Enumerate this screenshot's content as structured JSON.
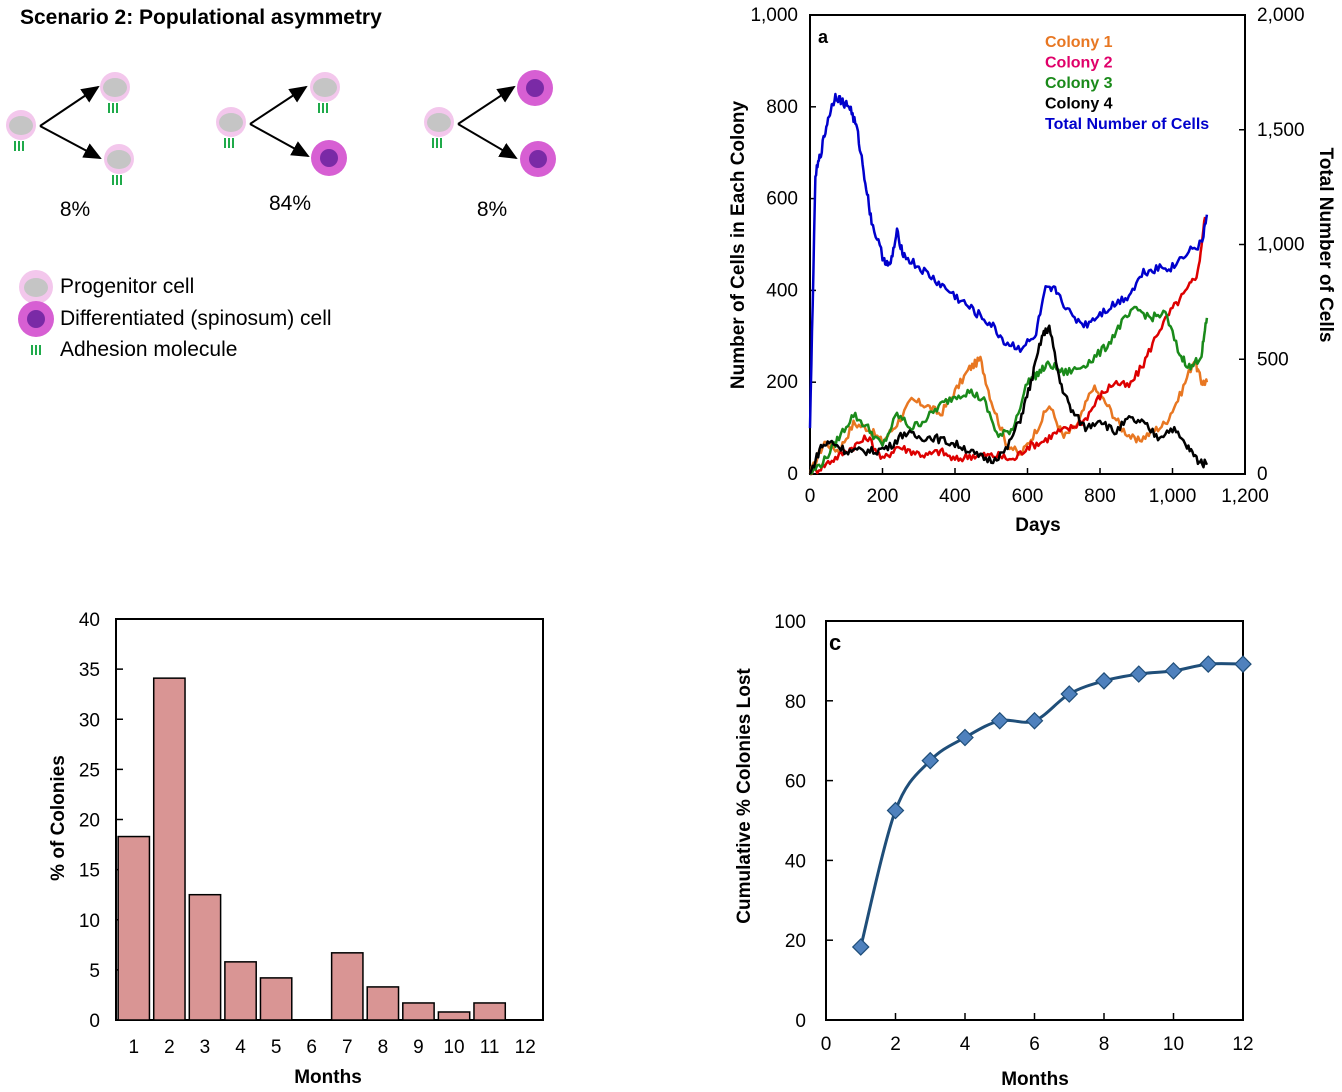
{
  "scenario": {
    "title": "Scenario 2: Populational asymmetry",
    "percentages": [
      "8%",
      "84%",
      "8%"
    ],
    "legend": [
      {
        "icon": "progenitor-cell-icon",
        "label": "Progenitor cell"
      },
      {
        "icon": "differentiated-cell-icon",
        "label": "Differentiated (spinosum) cell"
      },
      {
        "icon": "adhesion-molecule-icon",
        "label": "Adhesion molecule"
      }
    ]
  },
  "colors": {
    "colony1": "#e87722",
    "colony2": "#e0006a",
    "colony3": "#1a8a1a",
    "colony4": "#000000",
    "total": "#0000cc",
    "red_line": "#dd0000",
    "bar_fill": "#d99594",
    "line_c": "#1f4e79",
    "marker_c": "#4f81bd"
  },
  "chart_data": [
    {
      "type": "line",
      "label": "a",
      "xlabel": "Days",
      "ylabel": "Number of Cells in Each Colony",
      "y2label": "Total Number of Cells",
      "xlim": [
        0,
        1200
      ],
      "ylim": [
        0,
        1000
      ],
      "y2lim": [
        0,
        2000
      ],
      "xticks": [
        "0",
        "200",
        "400",
        "600",
        "800",
        "1,000",
        "1,200"
      ],
      "yticks": [
        "0",
        "200",
        "400",
        "600",
        "800",
        "1,000"
      ],
      "y2ticks": [
        "0",
        "500",
        "1,000",
        "1,500",
        "2,000"
      ],
      "legend": [
        "Colony 1",
        "Colony 2",
        "Colony 3",
        "Colony 4",
        "Total Number of Cells"
      ],
      "series": [
        {
          "name": "Colony 1",
          "color": "colony1",
          "axis": "left",
          "x": [
            0,
            40,
            80,
            120,
            160,
            200,
            240,
            280,
            320,
            360,
            400,
            440,
            470,
            500,
            540,
            580,
            620,
            660,
            700,
            740,
            780,
            820,
            860,
            900,
            940,
            980,
            1020,
            1060,
            1080,
            1095
          ],
          "y": [
            0,
            70,
            50,
            110,
            100,
            70,
            110,
            160,
            150,
            130,
            180,
            230,
            250,
            160,
            70,
            40,
            90,
            150,
            80,
            110,
            190,
            150,
            100,
            70,
            90,
            110,
            170,
            250,
            200,
            200
          ]
        },
        {
          "name": "Colony 2",
          "color": "red_line",
          "axis": "left",
          "x": [
            0,
            40,
            80,
            120,
            160,
            200,
            240,
            280,
            320,
            360,
            400,
            440,
            480,
            520,
            560,
            600,
            640,
            680,
            720,
            760,
            800,
            840,
            880,
            920,
            960,
            1000,
            1040,
            1070,
            1090
          ],
          "y": [
            0,
            20,
            40,
            60,
            80,
            30,
            60,
            50,
            40,
            50,
            30,
            40,
            40,
            40,
            30,
            60,
            70,
            90,
            100,
            120,
            170,
            200,
            190,
            240,
            310,
            360,
            400,
            440,
            560
          ]
        },
        {
          "name": "Colony 3",
          "color": "colony3",
          "axis": "left",
          "x": [
            0,
            40,
            80,
            120,
            160,
            200,
            240,
            280,
            320,
            360,
            400,
            440,
            480,
            520,
            560,
            600,
            630,
            660,
            700,
            740,
            780,
            820,
            860,
            900,
            940,
            980,
            1020,
            1050,
            1080,
            1095
          ],
          "y": [
            0,
            30,
            80,
            130,
            100,
            60,
            130,
            100,
            120,
            150,
            170,
            180,
            160,
            80,
            100,
            200,
            220,
            240,
            220,
            230,
            250,
            280,
            330,
            360,
            340,
            350,
            260,
            230,
            260,
            340
          ]
        },
        {
          "name": "Colony 4",
          "color": "colony4",
          "axis": "left",
          "x": [
            0,
            30,
            60,
            100,
            140,
            180,
            220,
            260,
            300,
            340,
            380,
            420,
            460,
            500,
            540,
            580,
            610,
            640,
            660,
            690,
            720,
            760,
            800,
            840,
            880,
            920,
            960,
            1000,
            1040,
            1070,
            1095
          ],
          "y": [
            0,
            60,
            70,
            50,
            50,
            50,
            60,
            90,
            80,
            80,
            70,
            60,
            40,
            30,
            50,
            120,
            200,
            300,
            320,
            200,
            140,
            100,
            120,
            90,
            120,
            110,
            80,
            100,
            60,
            30,
            20
          ]
        },
        {
          "name": "Total Number of Cells",
          "color": "total",
          "axis": "right",
          "x": [
            0,
            15,
            30,
            50,
            70,
            90,
            110,
            130,
            150,
            170,
            200,
            220,
            240,
            260,
            300,
            340,
            380,
            420,
            460,
            500,
            540,
            580,
            620,
            650,
            680,
            720,
            760,
            800,
            840,
            880,
            920,
            960,
            1000,
            1040,
            1080,
            1095
          ],
          "y": [
            200,
            1300,
            1400,
            1550,
            1650,
            1620,
            1600,
            1500,
            1300,
            1100,
            950,
            900,
            1050,
            950,
            900,
            850,
            800,
            750,
            700,
            650,
            570,
            550,
            590,
            800,
            800,
            690,
            650,
            700,
            740,
            780,
            880,
            900,
            900,
            970,
            1000,
            1130
          ]
        }
      ]
    },
    {
      "type": "bar",
      "label": "",
      "xlabel": "Months",
      "ylabel": "% of Colonies",
      "categories": [
        "1",
        "2",
        "3",
        "4",
        "5",
        "6",
        "7",
        "8",
        "9",
        "10",
        "11",
        "12"
      ],
      "values": [
        18.3,
        34.1,
        12.5,
        5.8,
        4.2,
        0,
        6.7,
        3.3,
        1.7,
        0.8,
        1.7,
        0
      ],
      "ylim": [
        0,
        40
      ],
      "yticks": [
        "0",
        "5",
        "10",
        "15",
        "20",
        "25",
        "30",
        "35",
        "40"
      ]
    },
    {
      "type": "line",
      "label": "c",
      "xlabel": "Months",
      "ylabel": "Cumulative % Colonies Lost",
      "x": [
        1,
        2,
        3,
        4,
        5,
        6,
        7,
        8,
        9,
        10,
        11,
        12
      ],
      "y": [
        18.3,
        52.5,
        65,
        70.8,
        75,
        75,
        81.7,
        85,
        86.7,
        87.5,
        89.2,
        89.2
      ],
      "xlim": [
        0,
        12
      ],
      "ylim": [
        0,
        100
      ],
      "xticks": [
        "0",
        "2",
        "4",
        "6",
        "8",
        "10",
        "12"
      ],
      "yticks": [
        "0",
        "20",
        "40",
        "60",
        "80",
        "100"
      ]
    }
  ]
}
